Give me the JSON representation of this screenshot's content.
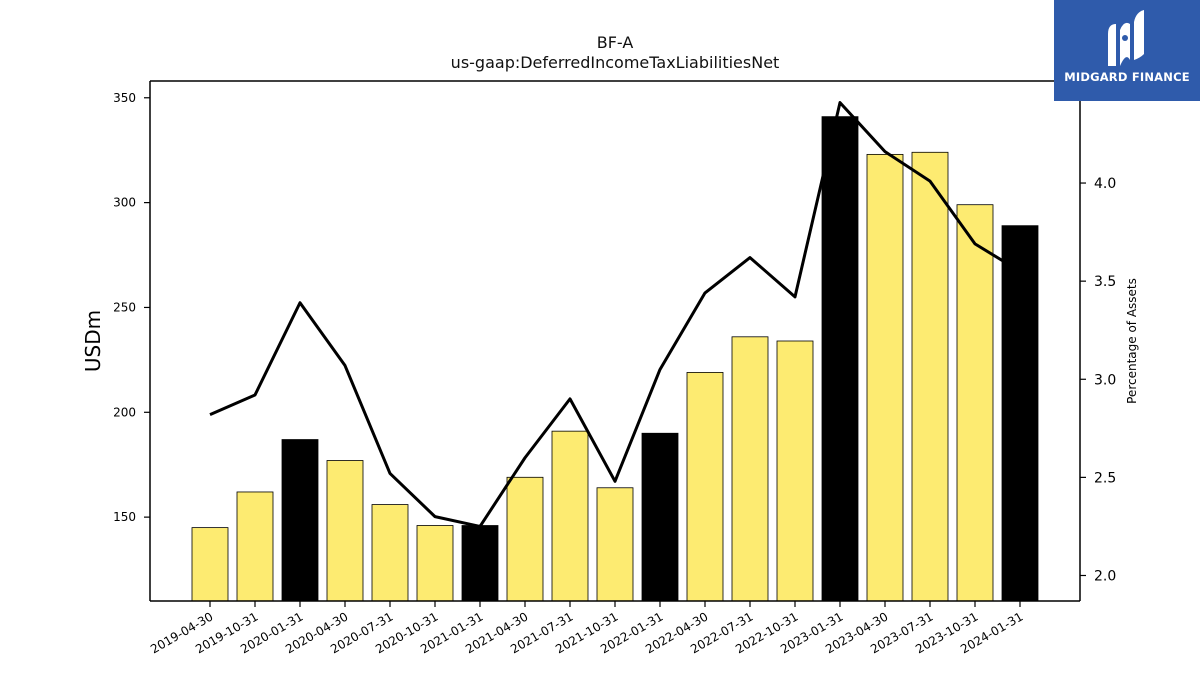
{
  "chart_data": {
    "type": "bar",
    "title": "BF-A",
    "subtitle": "us-gaap:DeferredIncomeTaxLiabilitiesNet",
    "ylabel": "USDm",
    "y2label": "Percentage of Assets",
    "categories": [
      "2019-04-30",
      "2019-10-31",
      "2020-01-31",
      "2020-04-30",
      "2020-07-31",
      "2020-10-31",
      "2021-01-31",
      "2021-04-30",
      "2021-07-31",
      "2021-10-31",
      "2022-01-31",
      "2022-04-30",
      "2022-07-31",
      "2022-10-31",
      "2023-01-31",
      "2023-04-30",
      "2023-07-31",
      "2023-10-31",
      "2024-01-31"
    ],
    "series": [
      {
        "type": "bar",
        "axis": "left",
        "values": [
          145,
          162,
          187,
          177,
          156,
          146,
          146,
          169,
          191,
          164,
          190,
          219,
          236,
          234,
          341,
          323,
          324,
          299,
          289
        ],
        "highlight": [
          false,
          false,
          true,
          false,
          false,
          false,
          true,
          false,
          false,
          false,
          true,
          false,
          false,
          false,
          true,
          false,
          false,
          false,
          true
        ],
        "color": "#fdeb71",
        "highlight_color": "#000000"
      },
      {
        "type": "line",
        "axis": "right",
        "values": [
          2.82,
          2.92,
          3.39,
          3.07,
          2.52,
          2.3,
          2.25,
          2.6,
          2.9,
          2.48,
          3.05,
          3.44,
          3.62,
          3.42,
          4.41,
          4.16,
          4.01,
          3.69,
          3.55
        ],
        "color": "#000000"
      }
    ],
    "ylim": [
      110,
      358
    ],
    "y2lim": [
      1.87,
      4.52
    ],
    "yticks": [
      150,
      200,
      250,
      300,
      350
    ],
    "y2ticks": [
      2.0,
      2.5,
      3.0,
      3.5,
      4.0
    ],
    "y2tick_labels": [
      "2.0",
      "2.5",
      "3.0",
      "3.5",
      "4.0"
    ],
    "grid": false,
    "legend": "none"
  },
  "logo": {
    "text": "MIDGARD FINANCE",
    "color": "#2f5bab"
  }
}
